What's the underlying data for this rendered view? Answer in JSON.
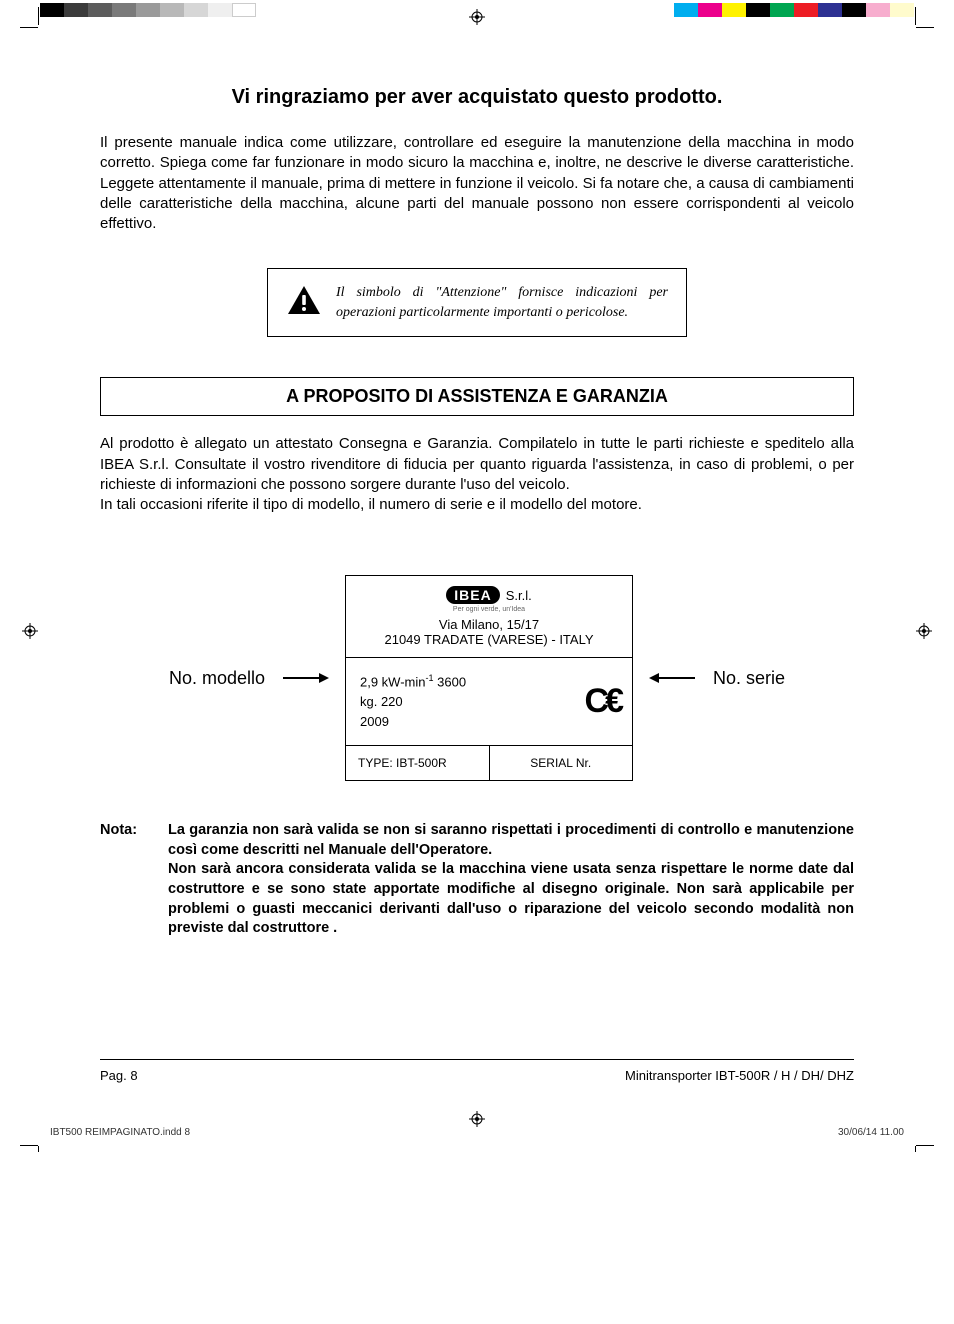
{
  "printer_bars": {
    "left_colors": [
      "#000000",
      "#3b3b3b",
      "#5c5c5c",
      "#7a7a7a",
      "#9a9a9a",
      "#b8b8b8",
      "#d6d6d6",
      "#efefef",
      "#ffffff"
    ],
    "right_colors": [
      "#00aeef",
      "#ec008c",
      "#fff200",
      "#000000",
      "#00a651",
      "#ed1c24",
      "#2e3192",
      "#000000",
      "#f7adce",
      "#fffbcc"
    ]
  },
  "title": "Vi ringraziamo per aver acquistato questo prodotto.",
  "intro_paragraph": "Il presente manuale indica come utilizzare, controllare ed eseguire la manutenzione della macchina in modo corretto. Spiega come far funzionare in modo sicuro la macchina e, inoltre, ne descrive le diverse caratteristiche. Leggete attentamente il manuale, prima di mettere in funzione il veicolo. Si fa notare che, a causa di cambiamenti delle caratteristiche della macchina, alcune parti del manuale possono non essere corrispondenti al veicolo effettivo.",
  "attention_text": "Il simbolo di \"Attenzione\" fornisce indicazioni per operazioni particolarmente importanti o pericolose.",
  "section_header": "A PROPOSITO DI ASSISTENZA E GARANZIA",
  "warranty_p1": "Al prodotto è allegato un attestato Consegna e Garanzia. Compilatelo in tutte le parti richieste e speditelo alla IBEA S.r.l. Consultate il vostro rivenditore di fiducia per quanto riguarda l'assistenza, in caso di problemi, o per richieste di informazioni che possono sorgere durante l'uso del veicolo.",
  "warranty_p2": "In tali occasioni riferite il tipo di modello, il numero di serie e il modello del motore.",
  "plate": {
    "label_left": "No. modello",
    "label_right": "No. serie",
    "brand": "IBEA",
    "brand_suffix": "S.r.l.",
    "tagline": "Per ogni verde, un'Idea",
    "address1": "Via Milano, 15/17",
    "address2": "21049 TRADATE (VARESE) - ITALY",
    "spec_power_prefix": "2,9 kW-min",
    "spec_power_exp": "-1",
    "spec_power_suffix": " 3600",
    "spec_weight": "kg. 220",
    "spec_year": "2009",
    "type_label": "TYPE: IBT-500R",
    "serial_label": "SERIAL Nr."
  },
  "nota": {
    "label": "Nota:",
    "text": "La garanzia non sarà valida se non si saranno rispettati i procedimenti di controllo e manutenzione così come descritti nel Manuale dell'Operatore.\nNon sarà ancora considerata valida se la macchina viene usata senza rispettare le norme date dal costruttore e se sono state apportate modifiche al disegno originale. Non sarà applicabile per problemi o guasti meccanici derivanti dall'uso o riparazione del veicolo secondo modalità non previste dal costruttore ."
  },
  "footer": {
    "page": "Pag. 8",
    "doc": "Minitransporter IBT-500R / H / DH/ DHZ"
  },
  "print_footer": {
    "file": "IBT500 REIMPAGINATO.indd   8",
    "timestamp": "30/06/14   11.00"
  }
}
